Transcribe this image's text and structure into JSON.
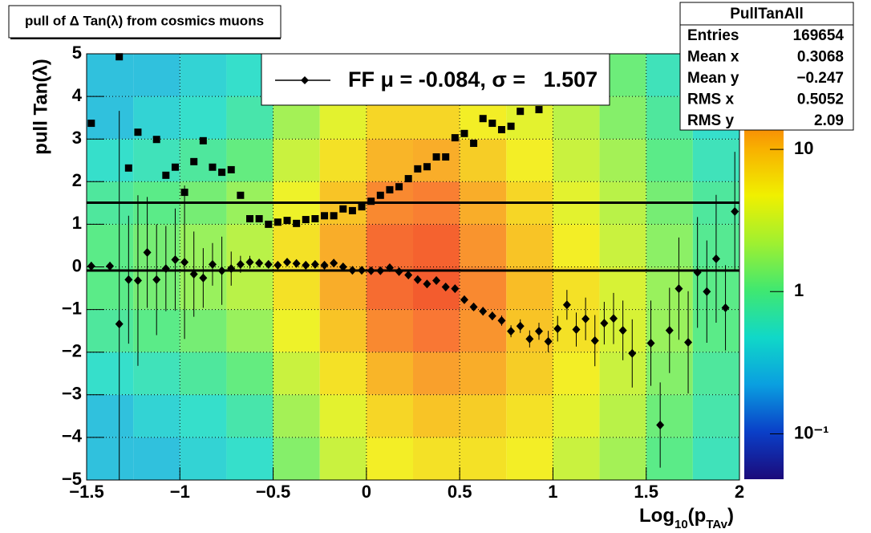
{
  "chart_data": {
    "type": "heatmap",
    "title": "pull of Δ Tan(λ) from cosmics muons",
    "xlabel": [
      "Log",
      "10",
      "(p",
      "TAv",
      ")"
    ],
    "ylabel": "pull Tan(λ)",
    "xlim": [
      -1.5,
      2
    ],
    "ylim": [
      -5,
      5
    ],
    "xticks": [
      {
        "value": -1.5,
        "label": "−1.5"
      },
      {
        "value": -1,
        "label": "−1"
      },
      {
        "value": -0.5,
        "label": "−0.5"
      },
      0,
      0.5,
      1,
      1.5,
      2
    ],
    "yticks": [
      {
        "value": -5,
        "label": "−5"
      },
      {
        "value": -4,
        "label": "−4"
      },
      {
        "value": -3,
        "label": "−3"
      },
      {
        "value": -2,
        "label": "−2"
      },
      {
        "value": -1,
        "label": "−1"
      },
      0,
      1,
      2,
      3,
      4,
      5
    ],
    "grid": true,
    "zlog": true,
    "zlim": [
      0.048,
      47
    ],
    "zticks": [
      {
        "value": 0.1,
        "label": "10⁻¹"
      },
      1,
      10
    ],
    "palette": [
      "#1b0a7a",
      "#0a3fc8",
      "#0a9fe0",
      "#10d8c8",
      "#40e870",
      "#a0f030",
      "#f0f000",
      "#f8b000",
      "#f86010",
      "#e81000"
    ],
    "xbins": [
      -1.5,
      -1.25,
      -1,
      -0.75,
      -0.5,
      -0.25,
      0,
      0.25,
      0.5,
      0.75,
      1,
      1.25,
      1.5,
      1.75,
      2
    ],
    "ybins": [
      -5,
      -4,
      -3,
      -2,
      -1,
      0,
      1,
      2,
      3,
      4,
      5
    ],
    "z": [
      [
        0.3,
        0.3,
        0.5,
        0.8,
        1,
        1,
        0.8,
        0.5,
        0.3,
        0.3
      ],
      [
        0.3,
        0.4,
        0.6,
        1,
        1.3,
        1.3,
        1,
        0.6,
        0.4,
        0.3
      ],
      [
        0.4,
        0.5,
        0.8,
        1.3,
        1.8,
        1.8,
        1.3,
        0.8,
        0.5,
        0.4
      ],
      [
        0.5,
        0.7,
        1.1,
        1.8,
        2.5,
        2.5,
        1.8,
        1.1,
        0.7,
        0.5
      ],
      [
        1.5,
        2,
        3,
        4.5,
        6,
        6,
        4.5,
        3,
        2,
        1.5
      ],
      [
        3,
        4,
        6,
        9,
        12,
        12,
        9,
        6,
        4,
        3
      ],
      [
        5,
        7,
        11,
        18,
        25,
        25,
        18,
        11,
        7,
        4
      ],
      [
        6,
        9,
        14,
        22,
        30,
        28,
        20,
        12,
        7,
        5
      ],
      [
        6,
        8,
        12,
        16,
        18,
        16,
        12,
        8,
        5,
        4
      ],
      [
        5,
        6,
        8,
        9,
        10,
        9,
        7,
        5,
        4,
        3
      ],
      [
        3,
        4,
        5,
        6,
        6,
        5,
        4,
        3,
        2.5,
        2
      ],
      [
        2,
        2.5,
        3,
        3.5,
        3.5,
        3,
        2.5,
        2,
        1.5,
        1.2
      ],
      [
        1,
        1.2,
        1.5,
        1.8,
        1.8,
        1.6,
        1.3,
        1,
        0.8,
        0.6
      ],
      [
        0.6,
        0.7,
        0.8,
        1,
        1,
        0.9,
        0.8,
        0.6,
        0.5,
        0.4
      ]
    ],
    "points": [
      {
        "marker": "square",
        "color": "#000000",
        "x": [
          -1.475,
          -1.325,
          -1.275,
          -1.225,
          -1.125,
          -1.075,
          -1.025,
          -0.975,
          -0.925,
          -0.875,
          -0.825,
          -0.775,
          -0.725,
          -0.675,
          -0.625,
          -0.575,
          -0.525,
          -0.475,
          -0.425,
          -0.375,
          -0.325,
          -0.275,
          -0.225,
          -0.175,
          -0.125,
          -0.075,
          -0.025,
          0.025,
          0.075,
          0.125,
          0.175,
          0.225,
          0.275,
          0.325,
          0.375,
          0.425,
          0.475,
          0.525,
          0.575,
          0.625,
          0.675,
          0.725,
          0.775,
          0.825,
          0.925
        ],
        "values": [
          3.37,
          4.93,
          2.32,
          3.16,
          2.99,
          2.15,
          2.34,
          1.75,
          2.47,
          2.96,
          2.34,
          2.22,
          2.28,
          1.68,
          1.13,
          1.13,
          1.0,
          1.05,
          1.09,
          1.02,
          1.11,
          1.13,
          1.2,
          1.2,
          1.36,
          1.32,
          1.41,
          1.54,
          1.68,
          1.81,
          1.88,
          2.07,
          2.3,
          2.35,
          2.58,
          2.58,
          3.03,
          3.13,
          2.9,
          3.48,
          3.37,
          3.22,
          3.3,
          3.65,
          3.69
        ]
      },
      {
        "marker": "diamond",
        "color": "#000000",
        "x": [
          -1.475,
          -1.375,
          -1.325,
          -1.275,
          -1.225,
          -1.175,
          -1.125,
          -1.075,
          -1.025,
          -0.975,
          -0.925,
          -0.875,
          -0.825,
          -0.775,
          -0.725,
          -0.675,
          -0.625,
          -0.575,
          -0.525,
          -0.475,
          -0.425,
          -0.375,
          -0.325,
          -0.275,
          -0.225,
          -0.175,
          -0.125,
          -0.075,
          -0.025,
          0.025,
          0.075,
          0.125,
          0.175,
          0.225,
          0.275,
          0.325,
          0.375,
          0.425,
          0.475,
          0.525,
          0.575,
          0.625,
          0.675,
          0.725,
          0.775,
          0.825,
          0.875,
          0.925,
          0.975,
          1.025,
          1.075,
          1.125,
          1.175,
          1.225,
          1.275,
          1.325,
          1.375,
          1.425,
          1.525,
          1.575,
          1.625,
          1.675,
          1.725,
          1.775,
          1.825,
          1.875,
          1.925,
          1.975
        ],
        "values": [
          0.02,
          0.02,
          -1.34,
          -0.3,
          -0.32,
          0.34,
          -0.3,
          -0.04,
          0.17,
          0.11,
          -0.17,
          -0.26,
          0.06,
          -0.09,
          -0.04,
          0.06,
          0.11,
          0.09,
          0.06,
          0.04,
          0.11,
          0.08,
          0.04,
          0.06,
          0.04,
          0.09,
          0,
          -0.08,
          -0.08,
          -0.09,
          -0.09,
          -0.02,
          -0.11,
          -0.19,
          -0.3,
          -0.4,
          -0.32,
          -0.47,
          -0.51,
          -0.77,
          -0.94,
          -1.04,
          -1.15,
          -1.26,
          -1.51,
          -1.39,
          -1.69,
          -1.51,
          -1.75,
          -1.45,
          -0.89,
          -1.47,
          -1.22,
          -1.73,
          -1.32,
          -1.21,
          -1.49,
          -2.03,
          -1.79,
          -3.71,
          -1.49,
          -0.51,
          -1.77,
          -0.13,
          -0.58,
          0.19,
          -0.96,
          1.3
        ],
        "errors": [
          0.1,
          0.1,
          5,
          1.5,
          2,
          1.3,
          1.3,
          1,
          1.2,
          1.8,
          1,
          0.7,
          0.5,
          0.8,
          0.4,
          0.2,
          0.15,
          0.1,
          0.08,
          0.06,
          0.05,
          0.04,
          0.04,
          0.03,
          0.03,
          0.03,
          0.03,
          0.03,
          0.03,
          0.03,
          0.03,
          0.03,
          0.03,
          0.04,
          0.04,
          0.05,
          0.05,
          0.06,
          0.07,
          0.08,
          0.09,
          0.1,
          0.1,
          0.12,
          0.14,
          0.16,
          0.2,
          0.2,
          0.25,
          0.3,
          0.35,
          0.4,
          0.5,
          0.6,
          0.5,
          0.6,
          0.7,
          0.8,
          1,
          1,
          1,
          1.2,
          1.2,
          1.3,
          1.2,
          1.5,
          1,
          1.4
        ]
      }
    ],
    "fit": {
      "prefix": "FF μ = ",
      "mu": -0.084,
      "mid": ", σ =   ",
      "sigma": 1.507
    },
    "stats": {
      "title": "PullTanAll",
      "rows": [
        [
          "Entries",
          "169654"
        ],
        [
          "Mean x",
          "0.3068"
        ],
        [
          "Mean y",
          "−0.247"
        ],
        [
          "RMS x",
          "0.5052"
        ],
        [
          "RMS y",
          "2.09"
        ]
      ]
    }
  }
}
